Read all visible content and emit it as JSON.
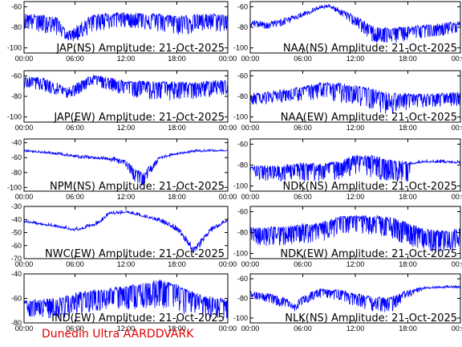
{
  "footer": {
    "credit": "Dunedin Ultra AARDDVARK"
  },
  "style": {
    "trace_color": "#0000ff",
    "axis_color": "#000000",
    "credit_color": "#dd0000"
  },
  "x_ticks": [
    "00:00",
    "06:00",
    "12:00",
    "18:00",
    "00:00"
  ],
  "chart_data": [
    {
      "type": "line",
      "title": "JAP(NS) Amplitude: 21-Oct-2025",
      "ylim": [
        -105,
        -55
      ],
      "yticks": [
        -100,
        -80,
        -60
      ],
      "x": [
        "00:00",
        "02:00",
        "04:00",
        "05:00",
        "06:00",
        "08:00",
        "10:00",
        "12:00",
        "14:00",
        "16:00",
        "18:00",
        "20:00",
        "22:00",
        "24:00"
      ],
      "series": [
        {
          "mean": [
            -68,
            -69,
            -72,
            -86,
            -81,
            -69,
            -67,
            -67,
            -67,
            -68,
            -70,
            -69,
            -68,
            -69
          ],
          "low": [
            -82,
            -85,
            -88,
            -92,
            -95,
            -85,
            -82,
            -80,
            -82,
            -85,
            -88,
            -86,
            -84,
            -85
          ]
        }
      ]
    },
    {
      "type": "line",
      "title": "NAA(NS) Amplitude: 21-Oct-2025",
      "ylim": [
        -105,
        -55
      ],
      "yticks": [
        -100,
        -80,
        -60
      ],
      "x": [
        "00:00",
        "02:00",
        "04:00",
        "06:00",
        "08:00",
        "09:00",
        "10:00",
        "12:00",
        "14:00",
        "16:00",
        "18:00",
        "20:00",
        "22:00",
        "24:00"
      ],
      "series": [
        {
          "mean": [
            -74,
            -76,
            -72,
            -66,
            -60,
            -59,
            -62,
            -70,
            -80,
            -82,
            -80,
            -79,
            -77,
            -75
          ],
          "low": [
            -80,
            -82,
            -78,
            -70,
            -63,
            -61,
            -66,
            -80,
            -95,
            -97,
            -93,
            -90,
            -88,
            -86
          ]
        }
      ]
    },
    {
      "type": "line",
      "title": "JAP(EW) Amplitude: 21-Oct-2025",
      "ylim": [
        -105,
        -55
      ],
      "yticks": [
        -100,
        -80,
        -60
      ],
      "x": [
        "00:00",
        "02:00",
        "04:00",
        "05:00",
        "06:00",
        "08:00",
        "10:00",
        "12:00",
        "14:00",
        "16:00",
        "18:00",
        "20:00",
        "22:00",
        "24:00"
      ],
      "series": [
        {
          "mean": [
            -62,
            -63,
            -68,
            -73,
            -69,
            -60,
            -63,
            -66,
            -66,
            -67,
            -67,
            -68,
            -66,
            -65
          ],
          "low": [
            -72,
            -74,
            -80,
            -82,
            -80,
            -70,
            -74,
            -80,
            -82,
            -84,
            -84,
            -83,
            -80,
            -78
          ]
        }
      ]
    },
    {
      "type": "line",
      "title": "NAA(EW) Amplitude: 21-Oct-2025",
      "ylim": [
        -105,
        -55
      ],
      "yticks": [
        -100,
        -80,
        -60
      ],
      "x": [
        "00:00",
        "02:00",
        "04:00",
        "06:00",
        "08:00",
        "10:00",
        "12:00",
        "14:00",
        "16:00",
        "18:00",
        "20:00",
        "22:00",
        "24:00"
      ],
      "series": [
        {
          "mean": [
            -78,
            -77,
            -74,
            -72,
            -68,
            -68,
            -70,
            -74,
            -78,
            -78,
            -79,
            -78,
            -77
          ],
          "low": [
            -88,
            -87,
            -86,
            -84,
            -84,
            -86,
            -88,
            -94,
            -98,
            -93,
            -92,
            -90,
            -90
          ]
        }
      ]
    },
    {
      "type": "line",
      "title": "NPM(NS) Amplitude: 21-Oct-2025",
      "ylim": [
        -105,
        -35
      ],
      "yticks": [
        -100,
        -80,
        -60,
        -40
      ],
      "x": [
        "00:00",
        "02:00",
        "04:00",
        "06:00",
        "08:00",
        "10:00",
        "12:00",
        "13:00",
        "14:00",
        "15:00",
        "16:00",
        "18:00",
        "20:00",
        "22:00",
        "24:00"
      ],
      "series": [
        {
          "mean": [
            -50,
            -52,
            -54,
            -57,
            -59,
            -60,
            -64,
            -76,
            -81,
            -70,
            -59,
            -54,
            -51,
            -50,
            -50
          ],
          "low": [
            -52,
            -54,
            -56,
            -60,
            -62,
            -64,
            -72,
            -92,
            -99,
            -80,
            -62,
            -56,
            -53,
            -52,
            -51
          ]
        }
      ]
    },
    {
      "type": "line",
      "title": "NDK(NS) Amplitude: 21-Oct-2025",
      "ylim": [
        -105,
        -55
      ],
      "yticks": [
        -100,
        -80,
        -60
      ],
      "x": [
        "00:00",
        "02:00",
        "04:00",
        "06:00",
        "08:00",
        "10:00",
        "12:00",
        "14:00",
        "16:00",
        "18:00",
        "18:30",
        "20:00",
        "22:00",
        "24:00"
      ],
      "series": [
        {
          "mean": [
            -82,
            -82,
            -81,
            -79,
            -80,
            -78,
            -72,
            -72,
            -76,
            -78,
            -78,
            -76,
            -76,
            -77
          ],
          "low": [
            -94,
            -95,
            -96,
            -95,
            -96,
            -94,
            -89,
            -92,
            -98,
            -100,
            -78,
            -78,
            -78,
            -79
          ]
        }
      ]
    },
    {
      "type": "line",
      "title": "NWC(EW) Amplitude: 21-Oct-2025",
      "ylim": [
        -70,
        -30
      ],
      "yticks": [
        -70,
        -60,
        -50,
        -40,
        -30
      ],
      "x": [
        "00:00",
        "02:00",
        "04:00",
        "06:00",
        "07:00",
        "09:00",
        "10:00",
        "12:00",
        "14:00",
        "16:00",
        "18:00",
        "19:00",
        "20:00",
        "22:00",
        "24:00"
      ],
      "series": [
        {
          "mean": [
            -41,
            -43,
            -45,
            -47,
            -46,
            -41,
            -35,
            -34,
            -37,
            -40,
            -46,
            -52,
            -62,
            -47,
            -40
          ],
          "low": [
            -42,
            -44,
            -46,
            -49,
            -48,
            -43,
            -36,
            -35,
            -38,
            -42,
            -49,
            -57,
            -67,
            -50,
            -41
          ]
        }
      ]
    },
    {
      "type": "line",
      "title": "NDK(EW) Amplitude: 21-Oct-2025",
      "ylim": [
        -105,
        -55
      ],
      "yticks": [
        -100,
        -80,
        -60
      ],
      "x": [
        "00:00",
        "02:00",
        "04:00",
        "06:00",
        "08:00",
        "10:00",
        "12:00",
        "14:00",
        "16:00",
        "18:00",
        "20:00",
        "22:00",
        "24:00"
      ],
      "series": [
        {
          "mean": [
            -77,
            -76,
            -75,
            -73,
            -72,
            -66,
            -65,
            -65,
            -66,
            -72,
            -78,
            -79,
            -77
          ],
          "low": [
            -92,
            -93,
            -92,
            -90,
            -90,
            -84,
            -82,
            -82,
            -86,
            -92,
            -98,
            -100,
            -95
          ]
        }
      ]
    },
    {
      "type": "line",
      "title": "IND(EW) Amplitude: 21-Oct-2025",
      "ylim": [
        -80,
        -40
      ],
      "yticks": [
        -80,
        -60,
        -40
      ],
      "x": [
        "00:00",
        "02:00",
        "04:00",
        "06:00",
        "08:00",
        "10:00",
        "12:00",
        "14:00",
        "16:00",
        "18:00",
        "20:00",
        "22:00",
        "24:00"
      ],
      "series": [
        {
          "mean": [
            -63,
            -62,
            -61,
            -57,
            -54,
            -53,
            -51,
            -49,
            -46,
            -50,
            -56,
            -60,
            -62
          ],
          "low": [
            -76,
            -76,
            -77,
            -74,
            -72,
            -70,
            -70,
            -70,
            -70,
            -72,
            -74,
            -76,
            -77
          ]
        }
      ]
    },
    {
      "type": "line",
      "title": "NLK(NS) Amplitude: 21-Oct-2025",
      "ylim": [
        -105,
        -55
      ],
      "yticks": [
        -100,
        -80,
        -60
      ],
      "x": [
        "00:00",
        "02:00",
        "04:00",
        "05:00",
        "06:00",
        "08:00",
        "10:00",
        "12:00",
        "14:00",
        "16:00",
        "18:00",
        "20:00",
        "22:00",
        "24:00"
      ],
      "series": [
        {
          "mean": [
            -74,
            -76,
            -80,
            -88,
            -78,
            -71,
            -72,
            -76,
            -80,
            -80,
            -72,
            -69,
            -68,
            -68
          ],
          "low": [
            -80,
            -84,
            -90,
            -94,
            -86,
            -80,
            -82,
            -88,
            -94,
            -95,
            -80,
            -70,
            -69,
            -69
          ]
        }
      ]
    }
  ]
}
